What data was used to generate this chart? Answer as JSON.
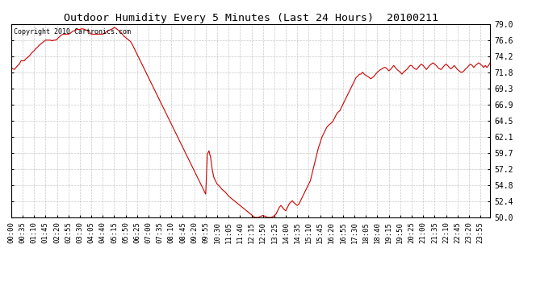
{
  "title": "Outdoor Humidity Every 5 Minutes (Last 24 Hours)  20100211",
  "copyright": "Copyright 2010 Cartronics.com",
  "line_color": "#cc0000",
  "bg_color": "#ffffff",
  "plot_bg_color": "#ffffff",
  "grid_color": "#aaaaaa",
  "ylim": [
    50.0,
    79.0
  ],
  "yticks": [
    50.0,
    52.4,
    54.8,
    57.2,
    59.7,
    62.1,
    64.5,
    66.9,
    69.3,
    71.8,
    74.2,
    76.6,
    79.0
  ],
  "humidity_values": [
    72.5,
    72.3,
    72.2,
    72.5,
    72.8,
    73.0,
    73.5,
    73.5,
    73.5,
    73.8,
    74.0,
    74.2,
    74.5,
    74.8,
    75.0,
    75.3,
    75.5,
    75.8,
    76.0,
    76.2,
    76.4,
    76.6,
    76.6,
    76.6,
    76.6,
    76.5,
    76.6,
    76.6,
    76.7,
    77.0,
    77.2,
    77.4,
    77.5,
    77.5,
    77.5,
    77.5,
    77.6,
    77.8,
    78.0,
    78.0,
    78.2,
    78.2,
    78.2,
    78.3,
    78.3,
    78.2,
    78.1,
    78.0,
    77.8,
    77.5,
    77.5,
    77.5,
    77.5,
    77.5,
    77.5,
    77.5,
    77.5,
    77.6,
    77.8,
    78.0,
    78.1,
    78.2,
    78.3,
    78.5,
    78.4,
    78.2,
    78.0,
    77.8,
    77.5,
    77.2,
    77.0,
    76.8,
    76.6,
    76.4,
    76.0,
    75.5,
    75.0,
    74.5,
    74.0,
    73.5,
    73.0,
    72.5,
    72.0,
    71.5,
    71.0,
    70.5,
    70.0,
    69.5,
    69.0,
    68.5,
    68.0,
    67.5,
    67.0,
    66.5,
    66.0,
    65.5,
    65.0,
    64.5,
    64.0,
    63.5,
    63.0,
    62.5,
    62.0,
    61.5,
    61.0,
    60.5,
    60.0,
    59.5,
    59.0,
    58.5,
    58.0,
    57.5,
    57.0,
    56.5,
    56.0,
    55.5,
    55.0,
    54.5,
    54.0,
    53.5,
    59.5,
    60.0,
    59.0,
    57.2,
    56.0,
    55.5,
    55.0,
    54.8,
    54.5,
    54.2,
    54.0,
    53.8,
    53.5,
    53.2,
    53.0,
    52.8,
    52.6,
    52.4,
    52.2,
    52.0,
    51.8,
    51.6,
    51.4,
    51.2,
    51.0,
    50.8,
    50.6,
    50.4,
    50.2,
    50.0,
    50.0,
    50.0,
    50.1,
    50.2,
    50.3,
    50.2,
    50.1,
    50.0,
    50.0,
    50.0,
    50.1,
    50.3,
    50.5,
    51.0,
    51.5,
    51.8,
    51.5,
    51.2,
    51.0,
    51.5,
    52.0,
    52.3,
    52.5,
    52.2,
    52.0,
    51.8,
    52.0,
    52.5,
    53.0,
    53.5,
    54.0,
    54.5,
    55.0,
    55.5,
    56.5,
    57.5,
    58.5,
    59.5,
    60.5,
    61.2,
    62.0,
    62.5,
    63.0,
    63.5,
    63.8,
    64.0,
    64.2,
    64.5,
    65.0,
    65.5,
    65.8,
    66.0,
    66.5,
    67.0,
    67.5,
    68.0,
    68.5,
    69.0,
    69.5,
    70.0,
    70.5,
    71.0,
    71.2,
    71.5,
    71.5,
    71.8,
    71.5,
    71.3,
    71.2,
    71.0,
    70.8,
    71.0,
    71.2,
    71.5,
    71.8,
    72.0,
    72.2,
    72.3,
    72.5,
    72.5,
    72.3,
    72.0,
    72.2,
    72.5,
    72.8,
    72.5,
    72.2,
    72.0,
    71.8,
    71.5,
    71.8,
    72.0,
    72.2,
    72.5,
    72.8,
    72.8,
    72.5,
    72.3,
    72.2,
    72.5,
    72.8,
    73.0,
    72.8,
    72.5,
    72.2,
    72.5,
    72.8,
    73.0,
    73.2,
    73.0,
    72.8,
    72.5,
    72.3,
    72.2,
    72.5,
    72.8,
    73.0,
    72.8,
    72.5,
    72.3,
    72.5,
    72.8,
    72.5,
    72.2,
    72.0,
    71.8,
    71.8,
    72.0,
    72.3,
    72.5,
    72.8,
    73.0,
    72.8,
    72.5,
    72.8,
    73.0,
    73.2,
    73.0,
    72.8,
    72.5,
    72.8,
    72.5,
    72.8,
    73.2
  ]
}
